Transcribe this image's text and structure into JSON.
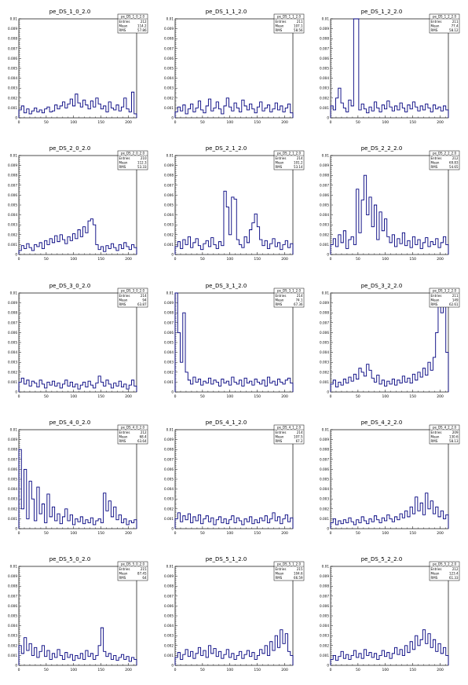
{
  "style": {
    "line_color": "#00007f",
    "axis_color": "#000000",
    "background": "#ffffff"
  },
  "chart_data": [
    {
      "type": "line",
      "title": "pe_DS_1_0_2.0",
      "xlim": [
        0,
        215
      ],
      "ylim": [
        0,
        0.01
      ],
      "stats": {
        "name": "pe_DS_1_0_2.0",
        "entries": "212",
        "mean": "114.2",
        "rms": "57.86"
      },
      "series": [
        {
          "values": [
            0.0008,
            0.0012,
            0.0005,
            0.0009,
            0.0004,
            0.0007,
            0.001,
            0.0006,
            0.0008,
            0.0005,
            0.0009,
            0.0011,
            0.0006,
            0.0007,
            0.0013,
            0.0009,
            0.0012,
            0.0016,
            0.001,
            0.0014,
            0.0019,
            0.0012,
            0.0024,
            0.0015,
            0.0011,
            0.0018,
            0.0013,
            0.0009,
            0.0017,
            0.0011,
            0.002,
            0.0014,
            0.0009,
            0.0012,
            0.0006,
            0.0016,
            0.001,
            0.0008,
            0.0013,
            0.0007,
            0.0011,
            0.002,
            0.0009,
            0.0006,
            0.0026,
            0.0004
          ]
        }
      ]
    },
    {
      "type": "line",
      "title": "pe_DS_1_1_2.0",
      "xlim": [
        0,
        215
      ],
      "ylim": [
        0,
        0.01
      ],
      "stats": {
        "name": "pe_DS_1_1_2.0",
        "entries": "211",
        "mean": "107.1",
        "rms": "58.56"
      },
      "series": [
        {
          "values": [
            0.0006,
            0.0011,
            0.0007,
            0.0013,
            0.0004,
            0.0009,
            0.0014,
            0.0006,
            0.001,
            0.0017,
            0.0008,
            0.0005,
            0.0012,
            0.0019,
            0.0007,
            0.001,
            0.0016,
            0.0009,
            0.0004,
            0.0012,
            0.002,
            0.0011,
            0.0007,
            0.0015,
            0.001,
            0.0006,
            0.0018,
            0.0012,
            0.0008,
            0.0014,
            0.0009,
            0.0005,
            0.0011,
            0.0016,
            0.0007,
            0.001,
            0.0013,
            0.0006,
            0.0009,
            0.0015,
            0.0008,
            0.0012,
            0.0006,
            0.001,
            0.0014,
            0.0005
          ]
        }
      ]
    },
    {
      "type": "line",
      "title": "pe_DS_1_2_2.0",
      "xlim": [
        0,
        215
      ],
      "ylim": [
        0,
        0.01
      ],
      "stats": {
        "name": "pe_DS_1_2_2.0",
        "entries": "211",
        "mean": "77.4",
        "rms": "58.12"
      },
      "series": [
        {
          "values": [
            0.0012,
            0.0008,
            0.002,
            0.003,
            0.0015,
            0.001,
            0.0006,
            0.0018,
            0.0012,
            0.011,
            0.011,
            0.0008,
            0.0014,
            0.0009,
            0.0005,
            0.0011,
            0.0007,
            0.0016,
            0.001,
            0.0006,
            0.0013,
            0.0009,
            0.0017,
            0.0011,
            0.0007,
            0.0012,
            0.0008,
            0.0015,
            0.001,
            0.0006,
            0.0013,
            0.0009,
            0.0016,
            0.0011,
            0.0007,
            0.0012,
            0.0008,
            0.0014,
            0.001,
            0.0006,
            0.0013,
            0.0009,
            0.0011,
            0.0007,
            0.0012,
            0.0008
          ]
        }
      ]
    },
    {
      "type": "line",
      "title": "pe_DS_2_0_2.0",
      "xlim": [
        0,
        215
      ],
      "ylim": [
        0,
        0.01
      ],
      "stats": {
        "name": "pe_DS_2_0_2.0",
        "entries": "210",
        "mean": "112.3",
        "rms": "53.33"
      },
      "series": [
        {
          "values": [
            0.0004,
            0.0009,
            0.0006,
            0.0011,
            0.0007,
            0.0004,
            0.001,
            0.0008,
            0.0012,
            0.0006,
            0.0014,
            0.001,
            0.0016,
            0.0012,
            0.0019,
            0.0013,
            0.002,
            0.0015,
            0.0011,
            0.0018,
            0.0014,
            0.0021,
            0.0016,
            0.0025,
            0.0018,
            0.0028,
            0.0022,
            0.0034,
            0.0036,
            0.003,
            0.001,
            0.0005,
            0.0008,
            0.0003,
            0.0009,
            0.0006,
            0.0011,
            0.0007,
            0.0004,
            0.001,
            0.0006,
            0.0012,
            0.0008,
            0.0005,
            0.001,
            0.0007
          ]
        }
      ]
    },
    {
      "type": "line",
      "title": "pe_DS_2_1_2.0",
      "xlim": [
        0,
        215
      ],
      "ylim": [
        0,
        0.01
      ],
      "stats": {
        "name": "pe_DS_2_1_2.0",
        "entries": "214",
        "mean": "101.2",
        "rms": "53.14"
      },
      "series": [
        {
          "values": [
            0.0008,
            0.0013,
            0.0006,
            0.0015,
            0.001,
            0.0018,
            0.0007,
            0.0012,
            0.0016,
            0.0009,
            0.0005,
            0.0011,
            0.0014,
            0.0008,
            0.0017,
            0.001,
            0.0006,
            0.0013,
            0.0009,
            0.0064,
            0.0048,
            0.002,
            0.0058,
            0.0056,
            0.0015,
            0.001,
            0.0007,
            0.0018,
            0.0012,
            0.0025,
            0.0032,
            0.0041,
            0.0028,
            0.0015,
            0.0009,
            0.0014,
            0.0006,
            0.0011,
            0.0016,
            0.0008,
            0.0012,
            0.0005,
            0.001,
            0.0014,
            0.0007,
            0.0011
          ]
        }
      ]
    },
    {
      "type": "line",
      "title": "pe_DS_2_2_2.0",
      "xlim": [
        0,
        215
      ],
      "ylim": [
        0,
        0.01
      ],
      "stats": {
        "name": "pe_DS_2_2_2.0",
        "entries": "212",
        "mean": "69.83",
        "rms": "54.65"
      },
      "series": [
        {
          "values": [
            0.001,
            0.0016,
            0.0008,
            0.002,
            0.0012,
            0.0024,
            0.0006,
            0.0015,
            0.0018,
            0.001,
            0.0066,
            0.0022,
            0.0055,
            0.008,
            0.004,
            0.0058,
            0.0028,
            0.005,
            0.0015,
            0.0043,
            0.0024,
            0.0036,
            0.0018,
            0.0012,
            0.002,
            0.0008,
            0.0016,
            0.0011,
            0.0022,
            0.0009,
            0.0014,
            0.0007,
            0.0018,
            0.001,
            0.0015,
            0.0006,
            0.0012,
            0.0017,
            0.0008,
            0.0013,
            0.001,
            0.0016,
            0.0007,
            0.0012,
            0.0018,
            0.001
          ]
        }
      ]
    },
    {
      "type": "line",
      "title": "pe_DS_3_0_2.0",
      "xlim": [
        0,
        215
      ],
      "ylim": [
        0,
        0.01
      ],
      "stats": {
        "name": "pe_DS_3_0_2.0",
        "entries": "214",
        "mean": "94",
        "rms": "63.87"
      },
      "series": [
        {
          "values": [
            0.001,
            0.0014,
            0.0008,
            0.0012,
            0.0006,
            0.0011,
            0.0009,
            0.0005,
            0.0012,
            0.0008,
            0.0004,
            0.001,
            0.0007,
            0.0011,
            0.0006,
            0.0009,
            0.0004,
            0.0008,
            0.0012,
            0.0006,
            0.001,
            0.0005,
            0.0008,
            0.0003,
            0.0007,
            0.001,
            0.0005,
            0.0011,
            0.0007,
            0.0004,
            0.0009,
            0.0016,
            0.001,
            0.0006,
            0.0012,
            0.0008,
            0.0004,
            0.0009,
            0.0006,
            0.0011,
            0.0005,
            0.0008,
            0.0003,
            0.0007,
            0.0012,
            0.0006
          ]
        }
      ]
    },
    {
      "type": "line",
      "title": "pe_DS_3_1_2.0",
      "xlim": [
        0,
        215
      ],
      "ylim": [
        0,
        0.01
      ],
      "stats": {
        "name": "pe_DS_3_1_2.0",
        "entries": "214",
        "mean": "74.1",
        "rms": "67.36"
      },
      "series": [
        {
          "values": [
            0.011,
            0.006,
            0.003,
            0.008,
            0.002,
            0.0012,
            0.0008,
            0.0015,
            0.001,
            0.0013,
            0.0007,
            0.0011,
            0.0009,
            0.0014,
            0.0008,
            0.0012,
            0.001,
            0.0006,
            0.0013,
            0.0009,
            0.0011,
            0.0007,
            0.0015,
            0.001,
            0.0008,
            0.0012,
            0.0006,
            0.0014,
            0.0009,
            0.0011,
            0.0007,
            0.0013,
            0.001,
            0.0008,
            0.0012,
            0.0006,
            0.0015,
            0.0009,
            0.0011,
            0.0007,
            0.0013,
            0.001,
            0.0008,
            0.0012,
            0.0014,
            0.0009
          ]
        }
      ]
    },
    {
      "type": "line",
      "title": "pe_DS_3_2_2.0",
      "xlim": [
        0,
        215
      ],
      "ylim": [
        0,
        0.01
      ],
      "stats": {
        "name": "pe_DS_3_2_2.0",
        "entries": "211",
        "mean": "149",
        "rms": "62.61"
      },
      "series": [
        {
          "values": [
            0.0008,
            0.0012,
            0.0005,
            0.001,
            0.0007,
            0.0013,
            0.0009,
            0.0015,
            0.0011,
            0.0018,
            0.0013,
            0.0024,
            0.002,
            0.0016,
            0.0028,
            0.0022,
            0.0014,
            0.001,
            0.0017,
            0.0008,
            0.0012,
            0.0006,
            0.0011,
            0.0008,
            0.0013,
            0.0007,
            0.0012,
            0.0009,
            0.0016,
            0.001,
            0.0014,
            0.0009,
            0.0018,
            0.0012,
            0.002,
            0.0015,
            0.0024,
            0.0017,
            0.003,
            0.0022,
            0.0035,
            0.006,
            0.011,
            0.008,
            0.011,
            0.004
          ]
        }
      ]
    },
    {
      "type": "line",
      "title": "pe_DS_4_0_2.0",
      "xlim": [
        0,
        215
      ],
      "ylim": [
        0,
        0.01
      ],
      "stats": {
        "name": "pe_DS_4_0_2.0",
        "entries": "212",
        "mean": "68.4",
        "rms": "63.64"
      },
      "series": [
        {
          "values": [
            0.008,
            0.002,
            0.006,
            0.001,
            0.0048,
            0.003,
            0.0008,
            0.0042,
            0.0015,
            0.0025,
            0.0006,
            0.0035,
            0.0012,
            0.0022,
            0.0008,
            0.0015,
            0.0005,
            0.0012,
            0.002,
            0.0008,
            0.0014,
            0.0004,
            0.001,
            0.0007,
            0.0012,
            0.0005,
            0.0009,
            0.0006,
            0.0011,
            0.0004,
            0.0008,
            0.001,
            0.0006,
            0.0036,
            0.0018,
            0.0028,
            0.0012,
            0.0022,
            0.0009,
            0.0014,
            0.0006,
            0.001,
            0.0004,
            0.0008,
            0.0006,
            0.0009
          ]
        }
      ]
    },
    {
      "type": "line",
      "title": "pe_DS_4_1_2.0",
      "xlim": [
        0,
        215
      ],
      "ylim": [
        0,
        0.01
      ],
      "stats": {
        "name": "pe_DS_4_1_2.0",
        "entries": "214",
        "mean": "107.5",
        "rms": "67.2"
      },
      "series": [
        {
          "values": [
            0.001,
            0.0016,
            0.0007,
            0.0013,
            0.0009,
            0.0015,
            0.0006,
            0.0012,
            0.0008,
            0.0014,
            0.0005,
            0.001,
            0.0013,
            0.0007,
            0.0011,
            0.0004,
            0.0009,
            0.0012,
            0.0006,
            0.001,
            0.0005,
            0.0009,
            0.0013,
            0.0006,
            0.0011,
            0.0008,
            0.0004,
            0.001,
            0.0007,
            0.0012,
            0.0005,
            0.0009,
            0.0006,
            0.0011,
            0.0008,
            0.0013,
            0.0006,
            0.001,
            0.0016,
            0.0008,
            0.0012,
            0.0005,
            0.001,
            0.0014,
            0.0007,
            0.0011
          ]
        }
      ]
    },
    {
      "type": "line",
      "title": "pe_DS_4_2_2.0",
      "xlim": [
        0,
        215
      ],
      "ylim": [
        0,
        0.01
      ],
      "stats": {
        "name": "pe_DS_4_2_2.0",
        "entries": "209",
        "mean": "130.6",
        "rms": "58.13"
      },
      "series": [
        {
          "values": [
            0.0006,
            0.001,
            0.0004,
            0.0008,
            0.0005,
            0.0009,
            0.0006,
            0.0011,
            0.0007,
            0.0004,
            0.0009,
            0.0006,
            0.0012,
            0.0008,
            0.0005,
            0.001,
            0.0007,
            0.0013,
            0.0009,
            0.0006,
            0.0011,
            0.0008,
            0.0014,
            0.001,
            0.0007,
            0.0012,
            0.0009,
            0.0015,
            0.0011,
            0.0018,
            0.0012,
            0.0022,
            0.0015,
            0.0032,
            0.0018,
            0.0026,
            0.0014,
            0.0036,
            0.002,
            0.0028,
            0.0015,
            0.0022,
            0.0012,
            0.0018,
            0.001,
            0.0014
          ]
        }
      ]
    },
    {
      "type": "line",
      "title": "pe_DS_5_0_2.0",
      "xlim": [
        0,
        215
      ],
      "ylim": [
        0,
        0.01
      ],
      "stats": {
        "name": "pe_DS_5_0_2.0",
        "entries": "215",
        "mean": "87.45",
        "rms": "64"
      },
      "series": [
        {
          "values": [
            0.002,
            0.0012,
            0.0028,
            0.0015,
            0.0022,
            0.001,
            0.0018,
            0.0008,
            0.0014,
            0.002,
            0.0009,
            0.0015,
            0.0006,
            0.0012,
            0.0008,
            0.0016,
            0.001,
            0.0006,
            0.0013,
            0.0008,
            0.0011,
            0.0005,
            0.001,
            0.0007,
            0.0012,
            0.0006,
            0.0015,
            0.0009,
            0.0012,
            0.0006,
            0.001,
            0.002,
            0.0038,
            0.0014,
            0.0009,
            0.0012,
            0.0006,
            0.001,
            0.0005,
            0.0008,
            0.0011,
            0.0006,
            0.0009,
            0.0004,
            0.0008,
            0.0006
          ]
        }
      ]
    },
    {
      "type": "line",
      "title": "pe_DS_5_1_2.0",
      "xlim": [
        0,
        215
      ],
      "ylim": [
        0,
        0.01
      ],
      "stats": {
        "name": "pe_DS_5_1_2.0",
        "entries": "215",
        "mean": "104.6",
        "rms": "66.59"
      },
      "series": [
        {
          "values": [
            0.0008,
            0.0013,
            0.0006,
            0.0011,
            0.0016,
            0.0009,
            0.0014,
            0.0007,
            0.0012,
            0.0018,
            0.001,
            0.0015,
            0.0008,
            0.002,
            0.0012,
            0.0017,
            0.0009,
            0.0014,
            0.0007,
            0.0011,
            0.0016,
            0.0008,
            0.0012,
            0.0006,
            0.001,
            0.0014,
            0.0007,
            0.0011,
            0.0015,
            0.0009,
            0.0013,
            0.0006,
            0.001,
            0.0016,
            0.0012,
            0.002,
            0.001,
            0.0024,
            0.0015,
            0.003,
            0.0018,
            0.0036,
            0.0022,
            0.0032,
            0.0014,
            0.001
          ]
        }
      ]
    },
    {
      "type": "line",
      "title": "pe_DS_5_2_2.0",
      "xlim": [
        0,
        215
      ],
      "ylim": [
        0,
        0.01
      ],
      "stats": {
        "name": "pe_DS_5_2_2.0",
        "entries": "212",
        "mean": "123.4",
        "rms": "61.33"
      },
      "series": [
        {
          "values": [
            0.0006,
            0.001,
            0.0005,
            0.0009,
            0.0014,
            0.0007,
            0.0011,
            0.0006,
            0.001,
            0.0015,
            0.0008,
            0.0012,
            0.0007,
            0.0016,
            0.001,
            0.0013,
            0.0008,
            0.0012,
            0.0006,
            0.001,
            0.0015,
            0.0009,
            0.0013,
            0.0007,
            0.0012,
            0.0018,
            0.0011,
            0.0016,
            0.001,
            0.002,
            0.0013,
            0.0024,
            0.0016,
            0.003,
            0.002,
            0.0026,
            0.0036,
            0.0022,
            0.0032,
            0.0018,
            0.0026,
            0.0014,
            0.0022,
            0.0012,
            0.0018,
            0.001
          ]
        }
      ]
    }
  ]
}
